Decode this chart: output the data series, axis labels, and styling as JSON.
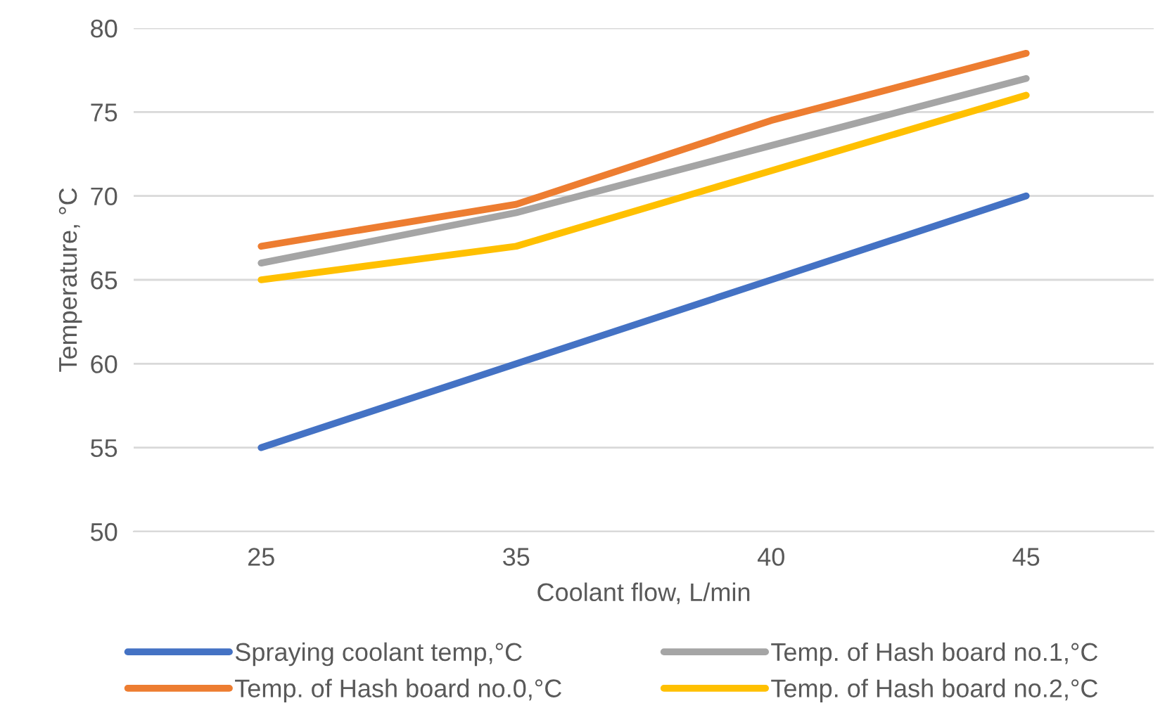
{
  "chart_data": {
    "type": "line",
    "xlabel": "Coolant flow, L/min",
    "ylabel": "Temperature, °C",
    "categories": [
      "25",
      "35",
      "40",
      "45"
    ],
    "series": [
      {
        "name": "Spraying coolant temp,°C",
        "color": "#4472c4",
        "values": [
          55,
          60,
          65,
          70
        ]
      },
      {
        "name": "Temp. of Hash board no.0,°C",
        "color": "#ed7d31",
        "values": [
          67,
          69.5,
          74.5,
          78.5
        ]
      },
      {
        "name": "Temp. of Hash board no.1,°C",
        "color": "#a5a5a5",
        "values": [
          66,
          69,
          73,
          77
        ]
      },
      {
        "name": "Temp. of Hash board no.2,°C",
        "color": "#ffc000",
        "values": [
          65,
          67,
          71.5,
          76
        ]
      }
    ],
    "ylim": [
      50,
      80
    ],
    "yticks": [
      50,
      55,
      60,
      65,
      70,
      75,
      80
    ],
    "grid": "y",
    "legend": "bottom",
    "marker": "none",
    "line_style": "solid"
  }
}
